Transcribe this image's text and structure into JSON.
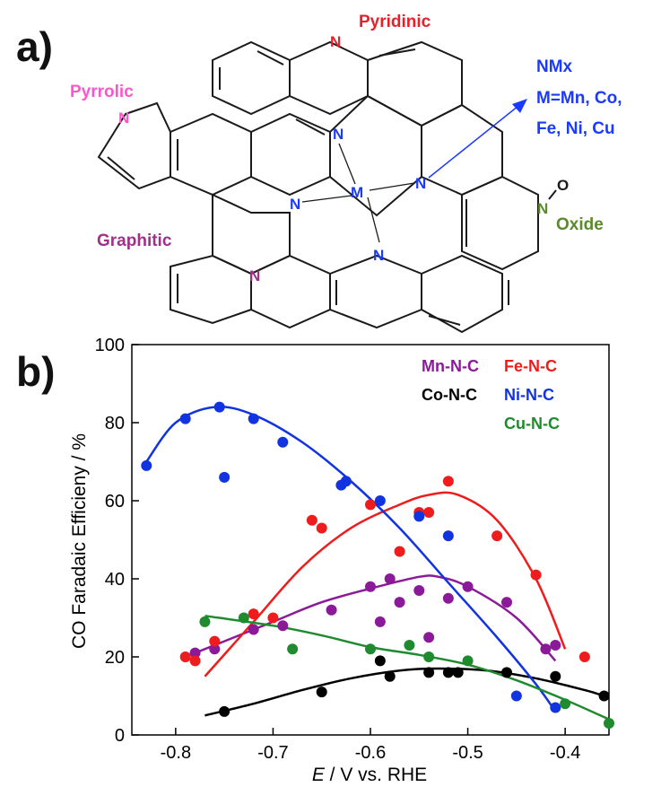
{
  "panel_a": {
    "label": "a)",
    "atoms": {
      "n": "N",
      "m": "M",
      "o": "O"
    },
    "labels": {
      "pyridinic": "Pyridinic",
      "pyrrolic": "Pyrrolic",
      "graphitic": "Graphitic",
      "oxide": "Oxide",
      "nmx": [
        "NMx",
        "M=Mn, Co,",
        "Fe, Ni, Cu"
      ]
    },
    "colors": {
      "pyridinic": "#e8202a",
      "pyrrolic": "#ff55cc",
      "graphitic": "#a0308a",
      "oxide": "#5a8a2a",
      "nmx": "#1a3aff",
      "bond": "#1a1a1a"
    }
  },
  "panel_b": {
    "label": "b)"
  },
  "chart_data": {
    "type": "scatter",
    "xlabel_italic": "E",
    "xlabel_rest": " / V vs. RHE",
    "ylabel": "CO Faradaic Efficieny / %",
    "xlim": [
      -0.845,
      -0.355
    ],
    "ylim": [
      0,
      100
    ],
    "xticks": [
      -0.8,
      -0.7,
      -0.6,
      -0.5,
      -0.4
    ],
    "xtick_labels": [
      "-0.8",
      "-0.7",
      "-0.6",
      "-0.5",
      "-0.4"
    ],
    "yticks": [
      0,
      20,
      40,
      60,
      80,
      100
    ],
    "ytick_labels": [
      "0",
      "20",
      "40",
      "60",
      "80",
      "100"
    ],
    "grid": false,
    "legend_position": "top-right",
    "series": [
      {
        "name": "Mn-N-C",
        "color": "#8b1a99",
        "points": [
          [
            -0.78,
            21
          ],
          [
            -0.76,
            22
          ],
          [
            -0.72,
            27
          ],
          [
            -0.69,
            28
          ],
          [
            -0.64,
            32
          ],
          [
            -0.6,
            38
          ],
          [
            -0.59,
            29
          ],
          [
            -0.58,
            40
          ],
          [
            -0.57,
            34
          ],
          [
            -0.55,
            37
          ],
          [
            -0.54,
            25
          ],
          [
            -0.52,
            35
          ],
          [
            -0.5,
            38
          ],
          [
            -0.46,
            34
          ],
          [
            -0.42,
            22
          ],
          [
            -0.41,
            23
          ]
        ],
        "fit": [
          [
            -0.79,
            20
          ],
          [
            -0.75,
            24
          ],
          [
            -0.7,
            29
          ],
          [
            -0.65,
            34
          ],
          [
            -0.6,
            37.5
          ],
          [
            -0.55,
            40.5
          ],
          [
            -0.53,
            40.5
          ],
          [
            -0.5,
            38
          ],
          [
            -0.45,
            30
          ],
          [
            -0.41,
            19
          ]
        ]
      },
      {
        "name": "Fe-N-C",
        "color": "#ee1c1c",
        "points": [
          [
            -0.79,
            20
          ],
          [
            -0.78,
            19
          ],
          [
            -0.76,
            24
          ],
          [
            -0.72,
            31
          ],
          [
            -0.7,
            30
          ],
          [
            -0.66,
            55
          ],
          [
            -0.65,
            53
          ],
          [
            -0.6,
            59
          ],
          [
            -0.57,
            47
          ],
          [
            -0.55,
            57
          ],
          [
            -0.54,
            57
          ],
          [
            -0.52,
            65
          ],
          [
            -0.47,
            51
          ],
          [
            -0.43,
            41
          ],
          [
            -0.38,
            20
          ]
        ],
        "fit": [
          [
            -0.77,
            15
          ],
          [
            -0.72,
            29
          ],
          [
            -0.67,
            43
          ],
          [
            -0.62,
            53
          ],
          [
            -0.57,
            59
          ],
          [
            -0.54,
            61.5
          ],
          [
            -0.51,
            61.5
          ],
          [
            -0.47,
            55
          ],
          [
            -0.43,
            40
          ],
          [
            -0.4,
            22
          ]
        ]
      },
      {
        "name": "Co-N-C",
        "color": "#000000",
        "points": [
          [
            -0.75,
            6
          ],
          [
            -0.65,
            11
          ],
          [
            -0.59,
            19
          ],
          [
            -0.58,
            15
          ],
          [
            -0.54,
            16
          ],
          [
            -0.52,
            16
          ],
          [
            -0.51,
            16
          ],
          [
            -0.46,
            16
          ],
          [
            -0.41,
            15
          ],
          [
            -0.36,
            10
          ]
        ],
        "fit": [
          [
            -0.77,
            5
          ],
          [
            -0.72,
            8
          ],
          [
            -0.67,
            11.5
          ],
          [
            -0.62,
            14.5
          ],
          [
            -0.57,
            16.5
          ],
          [
            -0.53,
            17
          ],
          [
            -0.48,
            16.5
          ],
          [
            -0.43,
            14.5
          ],
          [
            -0.38,
            11.5
          ],
          [
            -0.36,
            10
          ]
        ]
      },
      {
        "name": "Ni-N-C",
        "color": "#1133e0",
        "points": [
          [
            -0.83,
            69
          ],
          [
            -0.79,
            81
          ],
          [
            -0.755,
            84
          ],
          [
            -0.75,
            66
          ],
          [
            -0.72,
            81
          ],
          [
            -0.69,
            75
          ],
          [
            -0.63,
            64
          ],
          [
            -0.625,
            65
          ],
          [
            -0.59,
            60
          ],
          [
            -0.55,
            56
          ],
          [
            -0.52,
            51
          ],
          [
            -0.45,
            10
          ],
          [
            -0.41,
            7
          ]
        ],
        "fit": [
          [
            -0.83,
            70
          ],
          [
            -0.8,
            80
          ],
          [
            -0.76,
            84
          ],
          [
            -0.72,
            82
          ],
          [
            -0.67,
            75
          ],
          [
            -0.62,
            65
          ],
          [
            -0.57,
            53
          ],
          [
            -0.52,
            39
          ],
          [
            -0.47,
            25
          ],
          [
            -0.43,
            13
          ],
          [
            -0.41,
            6
          ]
        ]
      },
      {
        "name": "Cu-N-C",
        "color": "#1f8a2e",
        "points": [
          [
            -0.77,
            29
          ],
          [
            -0.73,
            30
          ],
          [
            -0.68,
            22
          ],
          [
            -0.6,
            22
          ],
          [
            -0.56,
            23
          ],
          [
            -0.54,
            20
          ],
          [
            -0.5,
            19
          ],
          [
            -0.4,
            8
          ],
          [
            -0.355,
            3
          ]
        ],
        "fit": [
          [
            -0.77,
            30.5
          ],
          [
            -0.7,
            28
          ],
          [
            -0.65,
            25.5
          ],
          [
            -0.6,
            22.5
          ],
          [
            -0.55,
            20.5
          ],
          [
            -0.5,
            18
          ],
          [
            -0.45,
            14
          ],
          [
            -0.4,
            9
          ],
          [
            -0.355,
            4
          ]
        ]
      }
    ]
  }
}
